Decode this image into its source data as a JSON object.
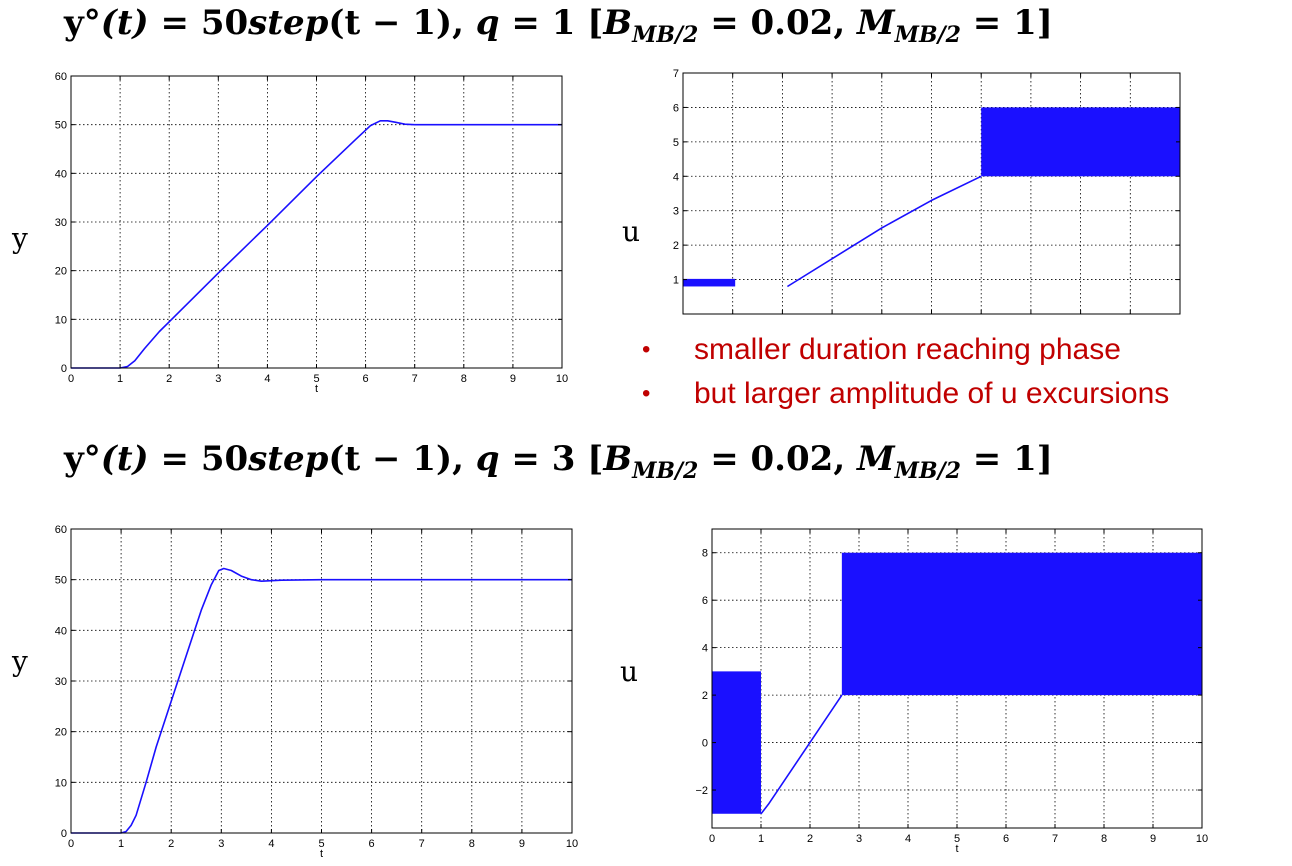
{
  "headings": [
    {
      "yref": "y°",
      "arg": "(t)",
      "eq": " = 50",
      "step": "step",
      "steparg": "(t − 1), ",
      "q": "q",
      "qeq": " = 1 [",
      "B": "B",
      "Bsub": "MB/2",
      "Beq": " = 0.02, ",
      "M": "M",
      "Msub": "MB/2",
      "Meq": " = 1]"
    },
    {
      "yref": "y°",
      "arg": "(t)",
      "eq": " = 50",
      "step": "step",
      "steparg": "(t − 1), ",
      "q": "q",
      "qeq": " = 3 [",
      "B": "B",
      "Bsub": "MB/2",
      "Beq": " = 0.02, ",
      "M": "M",
      "Msub": "MB/2",
      "Meq": " = 1]"
    }
  ],
  "side_labels": {
    "y": "y",
    "u": "u"
  },
  "notes": {
    "bullet": "•",
    "items": [
      "smaller duration reaching phase",
      "but larger amplitude of u excursions"
    ]
  },
  "colors": {
    "line": "#1a10ff",
    "note": "#c00000",
    "grid": "#000000"
  },
  "chart_data": [
    {
      "id": "y1",
      "type": "line",
      "xlabel": "t",
      "ylabel": "",
      "xlim": [
        0,
        10
      ],
      "ylim": [
        0,
        60
      ],
      "xticks": [
        0,
        1,
        2,
        3,
        4,
        5,
        6,
        7,
        8,
        9,
        10
      ],
      "yticks": [
        0,
        10,
        20,
        30,
        40,
        50,
        60
      ],
      "grid": true,
      "series": [
        {
          "x": [
            0,
            1,
            1.15,
            1.3,
            1.5,
            1.8,
            2,
            3,
            4,
            5,
            5.8,
            6.1,
            6.3,
            6.45,
            6.6,
            6.8,
            7,
            8,
            9,
            10
          ],
          "y": [
            0,
            0,
            0.3,
            1.5,
            4,
            7.5,
            9.5,
            19.5,
            29.3,
            39.3,
            47,
            49.8,
            50.8,
            50.8,
            50.5,
            50.1,
            50,
            50,
            50,
            50
          ]
        }
      ]
    },
    {
      "id": "u1",
      "type": "area",
      "xlabel": "",
      "ylabel": "",
      "xlim": [
        0,
        10
      ],
      "ylim": [
        0,
        7
      ],
      "xticks": [],
      "yticks": [
        1,
        2,
        3,
        4,
        5,
        6,
        7
      ],
      "grid": true,
      "clip_y_min": 0.8,
      "bands": [
        {
          "x0": 0,
          "x1": 1.05,
          "ylo": 0.8,
          "yhi": 1.02
        },
        {
          "x0": 6,
          "x1": 10,
          "ylo": 4,
          "yhi": 6
        }
      ],
      "series": [
        {
          "x": [
            2.1,
            4,
            5,
            6
          ],
          "y": [
            0.8,
            2.5,
            3.3,
            4
          ]
        }
      ]
    },
    {
      "id": "y2",
      "type": "line",
      "xlabel": "t",
      "ylabel": "",
      "xlim": [
        0,
        10
      ],
      "ylim": [
        0,
        60
      ],
      "xticks": [
        0,
        1,
        2,
        3,
        4,
        5,
        6,
        7,
        8,
        9,
        10
      ],
      "yticks": [
        0,
        10,
        20,
        30,
        40,
        50,
        60
      ],
      "grid": true,
      "series": [
        {
          "x": [
            0,
            1,
            1.1,
            1.2,
            1.3,
            1.5,
            1.7,
            2,
            2.3,
            2.6,
            2.8,
            2.95,
            3.05,
            3.2,
            3.4,
            3.6,
            3.8,
            4.2,
            5,
            6,
            10
          ],
          "y": [
            0,
            0,
            0.3,
            1.5,
            3.5,
            10,
            17,
            26,
            35,
            44,
            49,
            51.8,
            52.2,
            51.8,
            50.7,
            50,
            49.7,
            49.9,
            50,
            50,
            50
          ]
        }
      ]
    },
    {
      "id": "u2",
      "type": "area",
      "xlabel": "t",
      "ylabel": "",
      "xlim": [
        0,
        10
      ],
      "ylim": [
        -3.6,
        9
      ],
      "xticks": [
        0,
        1,
        2,
        3,
        4,
        5,
        6,
        7,
        8,
        9,
        10
      ],
      "yticks": [
        -2,
        0,
        2,
        4,
        6,
        8
      ],
      "ytick_labels": [
        "−2",
        "0",
        "2",
        "4",
        "6",
        "8"
      ],
      "grid": true,
      "bands": [
        {
          "x0": 0,
          "x1": 1,
          "ylo": -3,
          "yhi": 3
        },
        {
          "x0": 2.65,
          "x1": 10,
          "ylo": 2,
          "yhi": 8
        }
      ],
      "series": [
        {
          "x": [
            1,
            1.15,
            2.65
          ],
          "y": [
            -3,
            -2.6,
            2
          ]
        }
      ]
    }
  ]
}
